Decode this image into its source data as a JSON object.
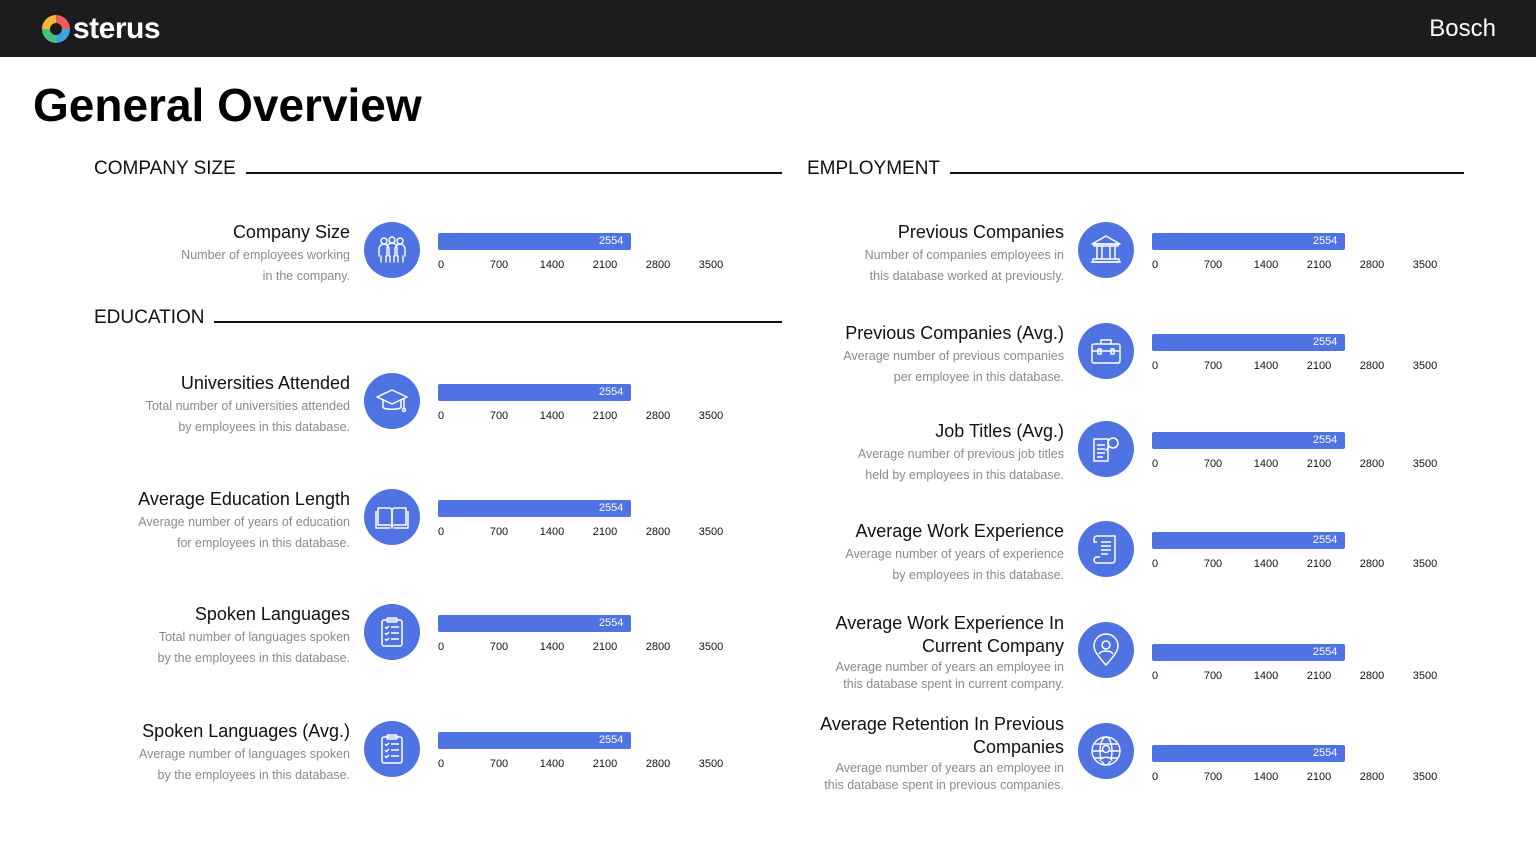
{
  "header": {
    "brand": "sterus",
    "company": "Bosch",
    "colors": {
      "background": "#1c1c1e",
      "accent": "#4f73e3"
    },
    "logo_icon": "multicolor-ring-icon"
  },
  "page_title": "General Overview",
  "sections": {
    "company_size": "COMPANY SIZE",
    "education": "EDUCATION",
    "employment": "EMPLOYMENT"
  },
  "axis_ticks": [
    "0",
    "700",
    "1400",
    "2100",
    "2800",
    "3500"
  ],
  "metrics": {
    "company_size": {
      "title": "Company Size",
      "desc": "Number of employees working\nin the company.",
      "value": 2554,
      "label": "2554",
      "icon": "people-group-icon"
    },
    "universities": {
      "title": "Universities Attended",
      "desc": "Total number of universities attended\nby employees in this database.",
      "value": 2554,
      "label": "2554",
      "icon": "graduation-cap-icon"
    },
    "edu_length": {
      "title": "Average Education Length",
      "desc": "Average number of years of education\nfor employees in this database.",
      "value": 2554,
      "label": "2554",
      "icon": "open-book-icon"
    },
    "languages": {
      "title": "Spoken Languages",
      "desc": "Total number of languages spoken\nby the employees in this database.",
      "value": 2554,
      "label": "2554",
      "icon": "clipboard-checklist-icon"
    },
    "languages_avg": {
      "title": "Spoken Languages (Avg.)",
      "desc": "Average number of languages spoken\nby the employees in this database.",
      "value": 2554,
      "label": "2554",
      "icon": "clipboard-checklist-icon"
    },
    "prev_companies": {
      "title": "Previous Companies",
      "desc": "Number of companies employees in\nthis database worked at previously.",
      "value": 2554,
      "label": "2554",
      "icon": "bank-building-icon"
    },
    "prev_companies_avg": {
      "title": "Previous Companies (Avg.)",
      "desc": "Average number of previous companies\nper employee in this database.",
      "value": 2554,
      "label": "2554",
      "icon": "briefcase-icon"
    },
    "job_titles": {
      "title": "Job Titles (Avg.)",
      "desc": "Average number of previous job titles\nheld by employees in this database.",
      "value": 2554,
      "label": "2554",
      "icon": "document-search-icon"
    },
    "work_exp": {
      "title": "Average Work Experience",
      "desc": "Average number of years of experience\nby employees in this database.",
      "value": 2554,
      "label": "2554",
      "icon": "scroll-document-icon"
    },
    "work_exp_current": {
      "title": "Average Work Experience In\nCurrent Company",
      "desc": "Average number of years an employee in\nthis database spent in current company.",
      "value": 2554,
      "label": "2554",
      "icon": "user-location-pin-icon"
    },
    "retention": {
      "title": "Average Retention In Previous\nCompanies",
      "desc": "Average number of years an employee in\nthis database spent in previous companies.",
      "value": 2554,
      "label": "2554",
      "icon": "global-user-icon"
    }
  },
  "chart_data": {
    "type": "bar",
    "orientation": "horizontal",
    "xlim": [
      0,
      3500
    ],
    "categories": [
      "Company Size",
      "Universities Attended",
      "Average Education Length",
      "Spoken Languages",
      "Spoken Languages (Avg.)",
      "Previous Companies",
      "Previous Companies (Avg.)",
      "Job Titles (Avg.)",
      "Average Work Experience",
      "Average Work Experience In Current Company",
      "Average Retention In Previous Companies"
    ],
    "values": [
      2554,
      2554,
      2554,
      2554,
      2554,
      2554,
      2554,
      2554,
      2554,
      2554,
      2554
    ]
  }
}
